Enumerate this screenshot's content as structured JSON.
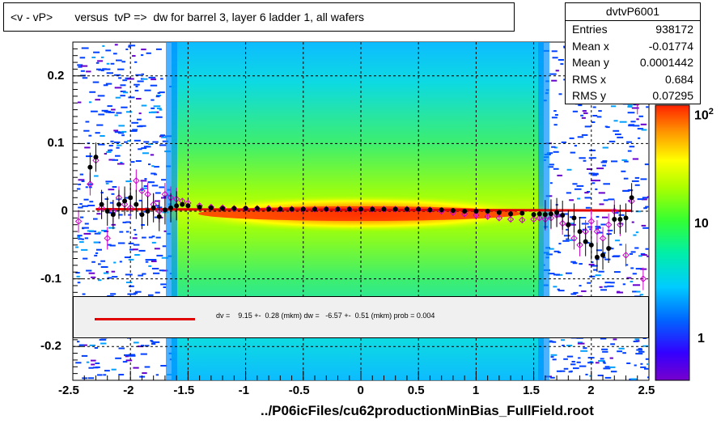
{
  "title": "<v - vP>       versus  tvP =>  dw for barrel 3, layer 6 ladder 1, all wafers",
  "stats": {
    "name": "dvtvP6001",
    "rows": [
      {
        "label": "Entries",
        "value": "938172"
      },
      {
        "label": "Mean x",
        "value": "-0.01774"
      },
      {
        "label": "Mean y",
        "value": "0.0001442"
      },
      {
        "label": "RMS x",
        "value": "0.684"
      },
      {
        "label": "RMS y",
        "value": "0.07295"
      }
    ]
  },
  "fit_text": "dv =    9.15 +-  0.28 (mkm) dw =   -6.57 +-  0.51 (mkm) prob = 0.004",
  "footer": "../P06icFiles/cu62productionMinBias_FullField.root",
  "colors": {
    "fit_line": "#e00000",
    "profile_black": "#000000",
    "profile_magenta": "#cc00cc"
  },
  "chart_data": {
    "type": "heatmap",
    "xlim": [
      -2.5,
      2.5
    ],
    "ylim": [
      -0.25,
      0.25
    ],
    "x_ticks": [
      "-2.5",
      "-2",
      "-1.5",
      "-1",
      "-0.5",
      "0",
      "0.5",
      "1",
      "1.5",
      "2",
      "2.5"
    ],
    "y_ticks": [
      "0.2",
      "0.1",
      "0",
      "-0.1",
      "-0.2"
    ],
    "z_scale": "log",
    "z_ticks": [
      "1",
      "10",
      "10^2"
    ],
    "grid": true,
    "fit_line": {
      "x": [
        -2.3,
        2.35
      ],
      "y": [
        0.003,
        0.001
      ]
    },
    "profile_black": {
      "x": [
        -2.35,
        -2.3,
        -2.25,
        -2.2,
        -2.15,
        -2.1,
        -2.05,
        -2.0,
        -1.95,
        -1.9,
        -1.85,
        -1.8,
        -1.75,
        -1.7,
        -1.65,
        -1.6,
        -1.55,
        -1.5,
        -1.4,
        -1.3,
        -1.2,
        -1.1,
        -1.0,
        -0.9,
        -0.8,
        -0.7,
        -0.6,
        -0.5,
        -0.4,
        -0.3,
        -0.2,
        -0.1,
        0.0,
        0.1,
        0.2,
        0.3,
        0.4,
        0.5,
        0.6,
        0.7,
        0.8,
        0.9,
        1.0,
        1.1,
        1.2,
        1.3,
        1.4,
        1.5,
        1.55,
        1.6,
        1.65,
        1.7,
        1.75,
        1.8,
        1.85,
        1.9,
        1.95,
        2.0,
        2.05,
        2.1,
        2.15,
        2.2,
        2.25,
        2.3,
        2.35
      ],
      "y": [
        0.065,
        0.08,
        0.01,
        0.0,
        -0.005,
        0.01,
        0.015,
        0.02,
        0.01,
        -0.005,
        0.0,
        0.005,
        -0.008,
        0.002,
        0.005,
        0.008,
        0.01,
        0.008,
        0.006,
        0.005,
        0.004,
        0.004,
        0.004,
        0.004,
        0.003,
        0.003,
        0.003,
        0.003,
        0.003,
        0.003,
        0.003,
        0.003,
        0.003,
        0.003,
        0.003,
        0.003,
        0.003,
        0.003,
        0.002,
        0.002,
        0.001,
        0.0,
        0.0,
        0.0,
        -0.002,
        -0.004,
        -0.003,
        -0.005,
        -0.004,
        -0.005,
        -0.004,
        -0.002,
        -0.006,
        -0.02,
        -0.01,
        -0.03,
        -0.045,
        -0.05,
        -0.068,
        -0.065,
        -0.055,
        -0.012,
        -0.012,
        -0.01,
        0.02
      ]
    },
    "profile_magenta": {
      "x": [
        -2.45,
        -2.35,
        -2.3,
        -2.25,
        -2.2,
        -2.15,
        -2.1,
        -2.05,
        -2.0,
        -1.95,
        -1.9,
        -1.85,
        -1.8,
        -1.75,
        -1.7,
        -1.65,
        -1.6,
        -1.55,
        -1.5,
        -1.4,
        -1.3,
        -1.2,
        -1.1,
        -1.0,
        -0.9,
        -0.8,
        -0.7,
        -0.6,
        -0.5,
        -0.4,
        -0.3,
        -0.2,
        -0.1,
        0.0,
        0.1,
        0.2,
        0.3,
        0.4,
        0.5,
        0.6,
        0.7,
        0.8,
        0.9,
        1.0,
        1.1,
        1.2,
        1.3,
        1.4,
        1.5,
        1.55,
        1.6,
        1.65,
        1.7,
        1.75,
        1.8,
        1.85,
        1.9,
        1.95,
        2.0,
        2.05,
        2.1,
        2.15,
        2.2,
        2.25,
        2.3,
        2.35,
        2.4,
        2.45
      ],
      "y": [
        -0.015,
        0.04,
        0.075,
        0.005,
        -0.04,
        0.0,
        0.02,
        0.01,
        0.005,
        0.045,
        0.03,
        0.025,
        0.01,
        0.0,
        0.025,
        0.02,
        0.018,
        0.015,
        0.012,
        0.008,
        0.006,
        0.005,
        0.004,
        0.004,
        0.004,
        0.004,
        0.003,
        0.003,
        0.003,
        0.003,
        0.003,
        0.003,
        0.003,
        0.003,
        0.003,
        0.003,
        0.003,
        0.003,
        0.003,
        0.002,
        0.0,
        -0.002,
        -0.004,
        -0.006,
        -0.008,
        -0.01,
        -0.012,
        -0.013,
        -0.012,
        -0.01,
        -0.012,
        -0.01,
        -0.006,
        -0.018,
        -0.02,
        -0.04,
        -0.05,
        -0.03,
        -0.015,
        -0.03,
        -0.04,
        -0.02,
        0.0,
        -0.02,
        -0.065,
        0.015,
        0.16,
        -0.1
      ]
    }
  }
}
